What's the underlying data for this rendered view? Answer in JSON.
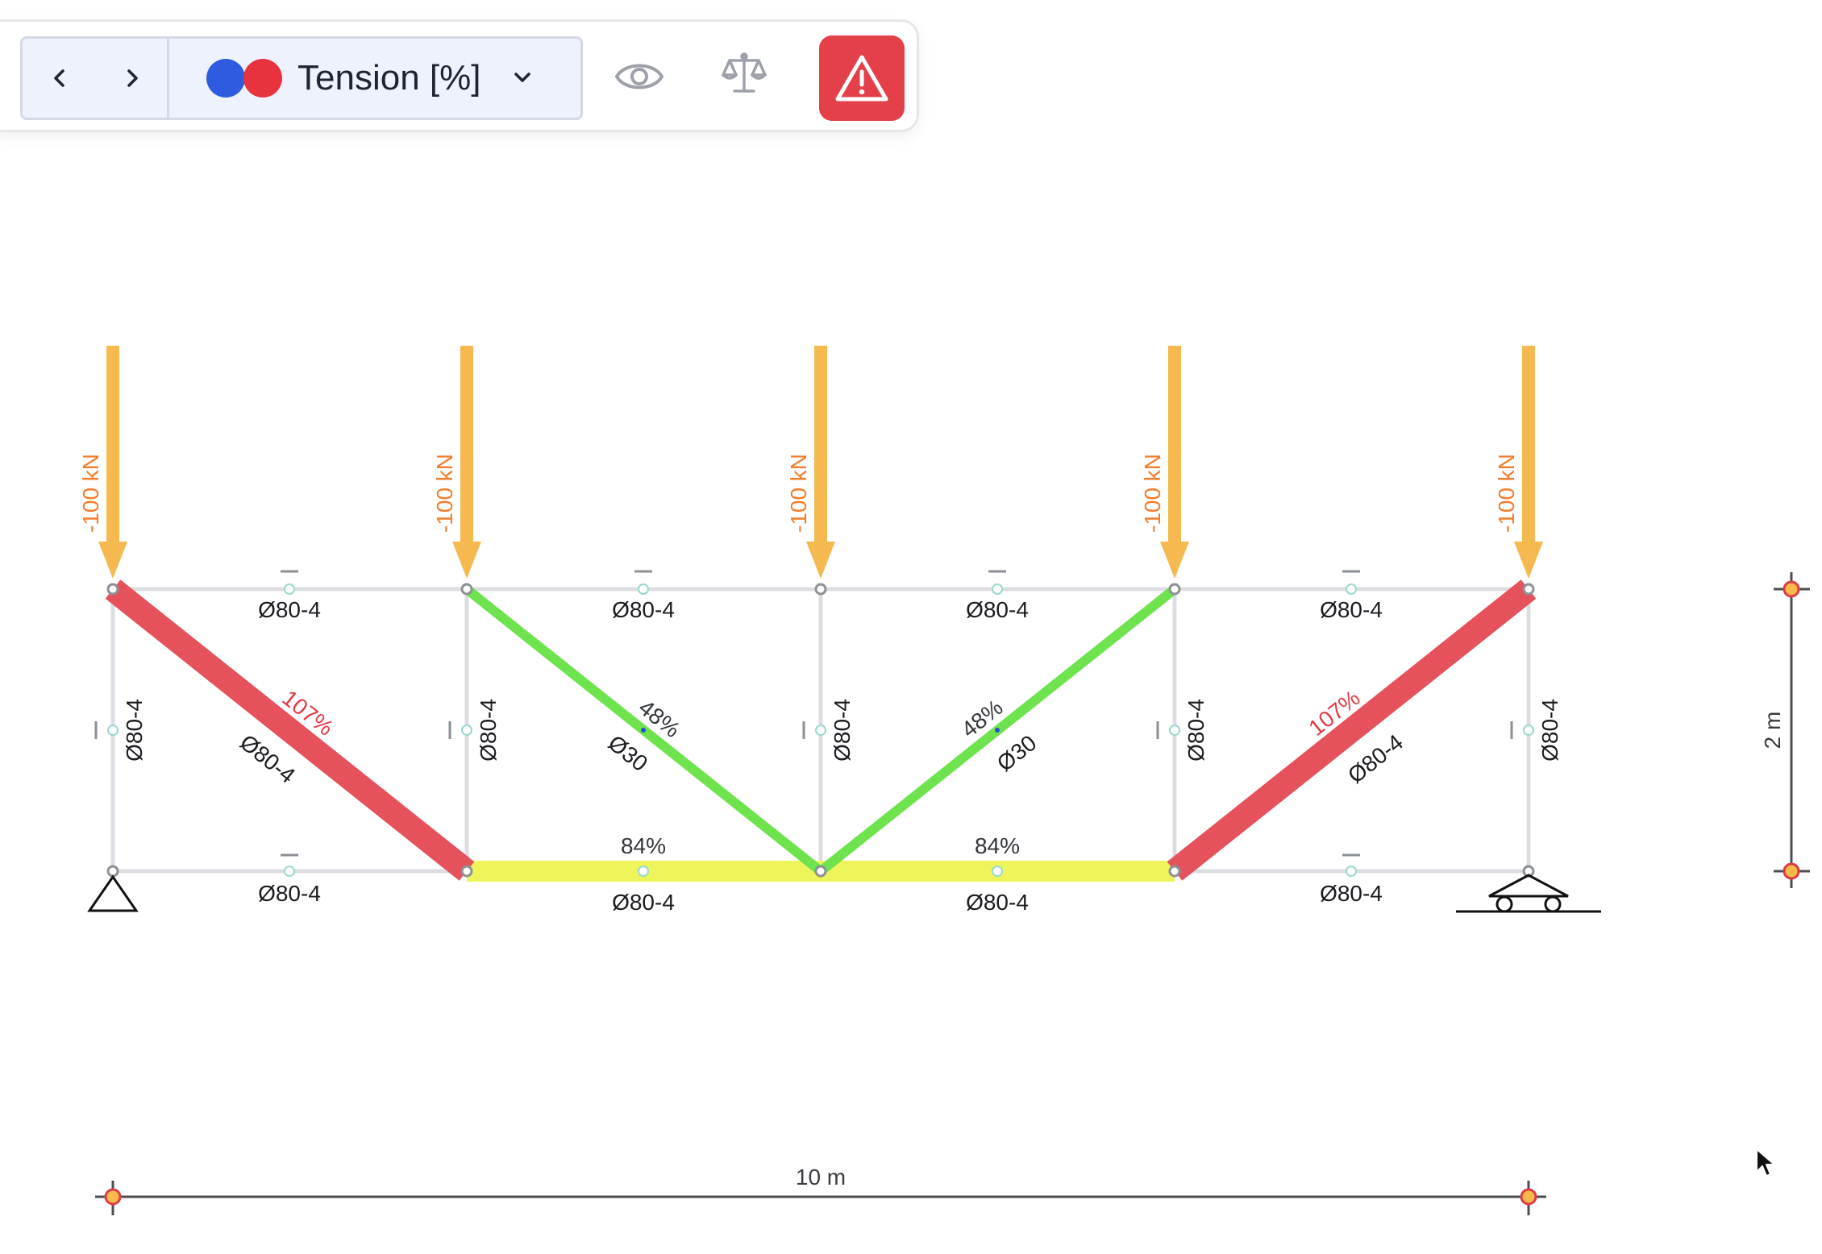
{
  "toolbar": {
    "result_mode_label": "Tension [%]",
    "legend_colors": [
      "#2f5be0",
      "#e8323e"
    ],
    "icons": [
      "chevron-left-icon",
      "chevron-right-icon",
      "chevron-down-icon",
      "eye-icon",
      "balance-scale-icon",
      "warning-icon"
    ],
    "warning_color": "#e3404a"
  },
  "model": {
    "loads": [
      "-100 kN",
      "-100 kN",
      "-100 kN",
      "-100 kN",
      "-100 kN"
    ],
    "load_color": "#f5b94f",
    "top_chord_sections": [
      "Ø80-4",
      "Ø80-4",
      "Ø80-4",
      "Ø80-4"
    ],
    "bottom_chord_sections": [
      "Ø80-4",
      "Ø80-4",
      "Ø80-4",
      "Ø80-4"
    ],
    "bottom_chord_utilization": [
      "",
      "84%",
      "84%",
      ""
    ],
    "vertical_sections": [
      "Ø80-4",
      "Ø80-4",
      "Ø80-4",
      "Ø80-4",
      "Ø80-4"
    ],
    "diagonals": [
      {
        "section": "Ø80-4",
        "utilization": "107%",
        "color": "#e5525c"
      },
      {
        "section": "Ø30",
        "utilization": "48%",
        "color": "#6ee34e"
      },
      {
        "section": "Ø30",
        "utilization": "48%",
        "color": "#6ee34e"
      },
      {
        "section": "Ø80-4",
        "utilization": "107%",
        "color": "#e5525c"
      }
    ],
    "bottom_chord_highlight_color": "#eef55a",
    "over_limit_color": "#e03a46",
    "supports": [
      "pinned",
      "roller"
    ]
  },
  "dimensions": {
    "width_label": "10 m",
    "height_label": "2 m"
  }
}
